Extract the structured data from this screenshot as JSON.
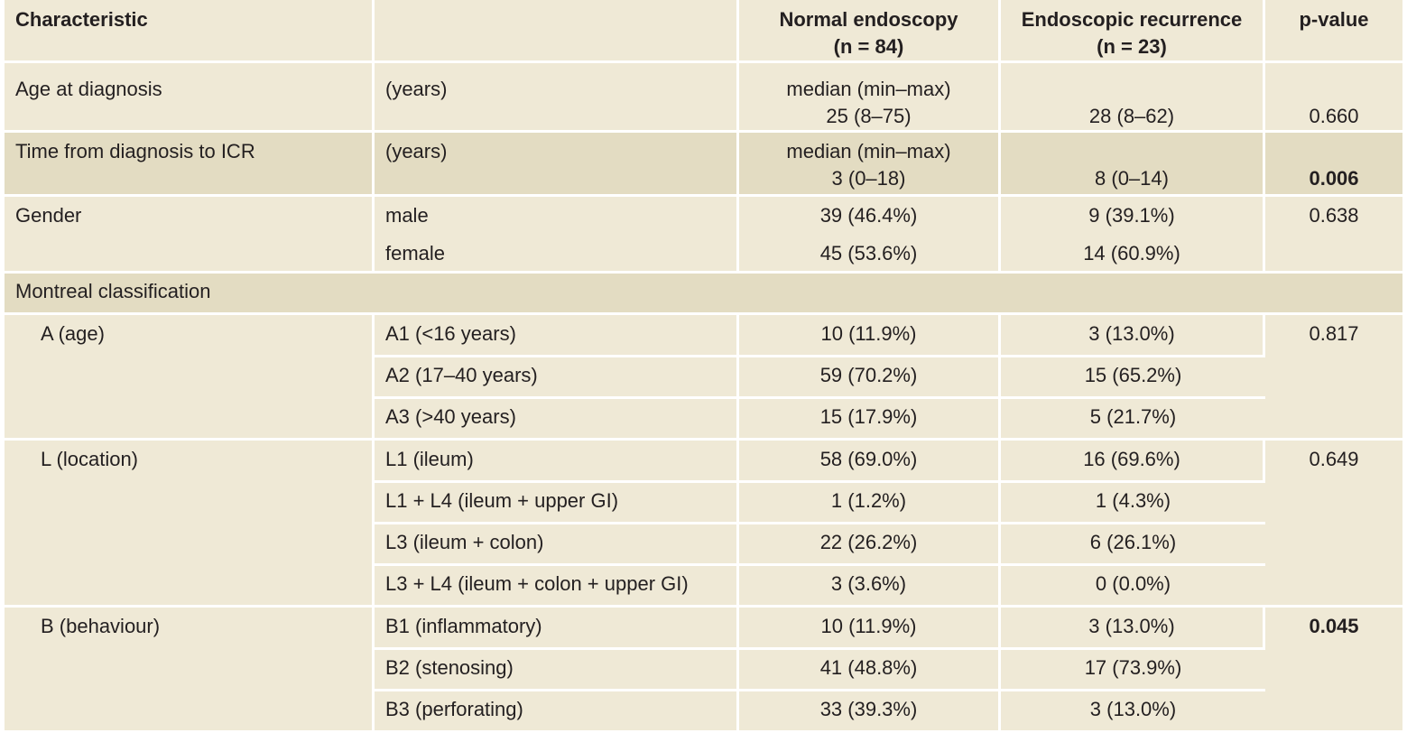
{
  "header": {
    "characteristic": "Characteristic",
    "normal_line1": "Normal endoscopy",
    "normal_line2": "(n = 84)",
    "recurrence_line1": "Endoscopic recurrence",
    "recurrence_line2": "(n = 23)",
    "pvalue": "p-value"
  },
  "age": {
    "label": "Age at diagnosis",
    "unit": "(years)",
    "stat": "median (min–max)",
    "normal": "25 (8–75)",
    "recurrence": "28 (8–62)",
    "p": "0.660"
  },
  "time": {
    "label": "Time from diagnosis to ICR",
    "unit": "(years)",
    "stat": "median (min–max)",
    "normal": "3 (0–18)",
    "recurrence": "8 (0–14)",
    "p": "0.006"
  },
  "gender": {
    "label": "Gender",
    "p": "0.638",
    "rows": [
      {
        "label": "male",
        "normal": "39 (46.4%)",
        "recurrence": "9 (39.1%)"
      },
      {
        "label": "female",
        "normal": "45 (53.6%)",
        "recurrence": "14 (60.9%)"
      }
    ]
  },
  "montreal": {
    "label": "Montreal classification"
  },
  "age_group": {
    "label": "A (age)",
    "p": "0.817",
    "rows": [
      {
        "label": "A1 (<16 years)",
        "normal": "10 (11.9%)",
        "recurrence": "3 (13.0%)"
      },
      {
        "label": "A2 (17–40 years)",
        "normal": "59 (70.2%)",
        "recurrence": "15 (65.2%)"
      },
      {
        "label": "A3 (>40 years)",
        "normal": "15 (17.9%)",
        "recurrence": "5 (21.7%)"
      }
    ]
  },
  "location": {
    "label": "L (location)",
    "p": "0.649",
    "rows": [
      {
        "label": "L1 (ileum)",
        "normal": "58 (69.0%)",
        "recurrence": "16 (69.6%)"
      },
      {
        "label": "L1 + L4 (ileum + upper GI)",
        "normal": "1 (1.2%)",
        "recurrence": "1 (4.3%)"
      },
      {
        "label": "L3 (ileum + colon)",
        "normal": "22 (26.2%)",
        "recurrence": "6 (26.1%)"
      },
      {
        "label": "L3 + L4 (ileum + colon + upper GI)",
        "normal": "3 (3.6%)",
        "recurrence": "0 (0.0%)"
      }
    ]
  },
  "behaviour": {
    "label": "B (behaviour)",
    "p": "0.045",
    "rows": [
      {
        "label": "B1 (inflammatory)",
        "normal": "10 (11.9%)",
        "recurrence": "3 (13.0%)"
      },
      {
        "label": "B2 (stenosing)",
        "normal": "41 (48.8%)",
        "recurrence": "17 (73.9%)"
      },
      {
        "label": "B3 (perforating)",
        "normal": "33 (39.3%)",
        "recurrence": "3 (13.0%)"
      }
    ]
  }
}
